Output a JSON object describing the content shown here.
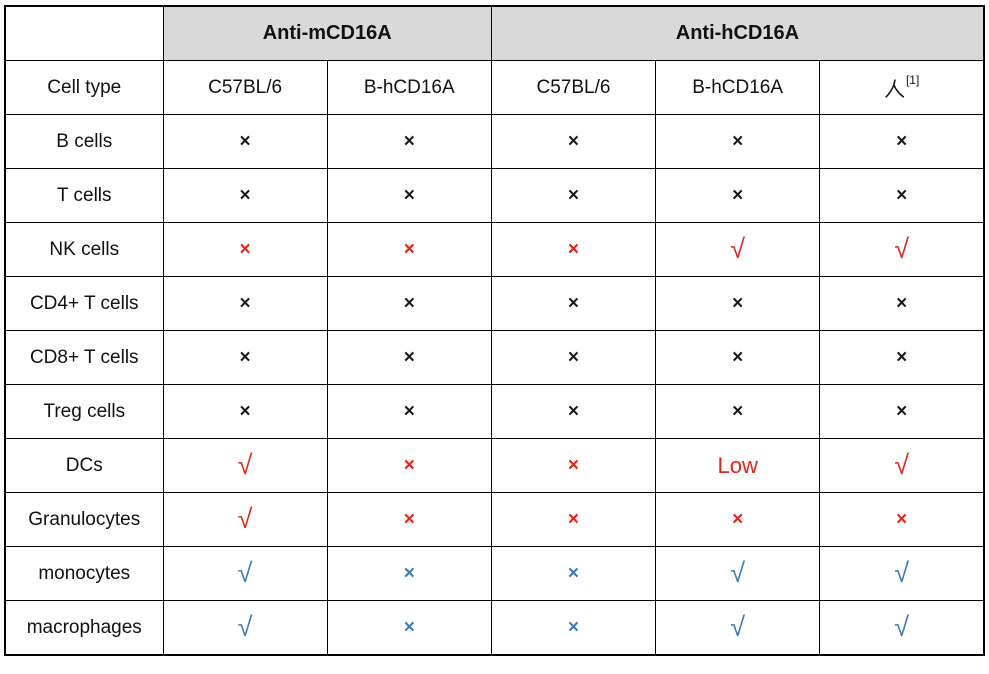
{
  "colors": {
    "black": "#1a1a1a",
    "red": "#e8231a",
    "blue": "#3e7bb6",
    "header_bg": "#d9d9d9",
    "border": "#000000"
  },
  "chart_data": {
    "type": "table",
    "title": "",
    "symbols": {
      "cross": "×",
      "check": "√"
    },
    "group_headers": [
      {
        "label": "Anti-mCD16A",
        "colspan": 2
      },
      {
        "label": "Anti-hCD16A",
        "colspan": 3
      }
    ],
    "column_headers": [
      {
        "label": "Cell type"
      },
      {
        "label": "C57BL/6"
      },
      {
        "label": "B-hCD16A"
      },
      {
        "label": "C57BL/6"
      },
      {
        "label": "B-hCD16A"
      },
      {
        "label": "人",
        "superscript": "[1]"
      }
    ],
    "rows": [
      {
        "cell_type": "B cells",
        "values": [
          {
            "symbol": "cross",
            "color": "black"
          },
          {
            "symbol": "cross",
            "color": "black"
          },
          {
            "symbol": "cross",
            "color": "black"
          },
          {
            "symbol": "cross",
            "color": "black"
          },
          {
            "symbol": "cross",
            "color": "black"
          }
        ]
      },
      {
        "cell_type": "T cells",
        "values": [
          {
            "symbol": "cross",
            "color": "black"
          },
          {
            "symbol": "cross",
            "color": "black"
          },
          {
            "symbol": "cross",
            "color": "black"
          },
          {
            "symbol": "cross",
            "color": "black"
          },
          {
            "symbol": "cross",
            "color": "black"
          }
        ]
      },
      {
        "cell_type": "NK cells",
        "values": [
          {
            "symbol": "cross",
            "color": "red"
          },
          {
            "symbol": "cross",
            "color": "red"
          },
          {
            "symbol": "cross",
            "color": "red"
          },
          {
            "symbol": "check",
            "color": "red"
          },
          {
            "symbol": "check",
            "color": "red"
          }
        ]
      },
      {
        "cell_type": "CD4+ T cells",
        "values": [
          {
            "symbol": "cross",
            "color": "black"
          },
          {
            "symbol": "cross",
            "color": "black"
          },
          {
            "symbol": "cross",
            "color": "black"
          },
          {
            "symbol": "cross",
            "color": "black"
          },
          {
            "symbol": "cross",
            "color": "black"
          }
        ]
      },
      {
        "cell_type": "CD8+ T cells",
        "values": [
          {
            "symbol": "cross",
            "color": "black"
          },
          {
            "symbol": "cross",
            "color": "black"
          },
          {
            "symbol": "cross",
            "color": "black"
          },
          {
            "symbol": "cross",
            "color": "black"
          },
          {
            "symbol": "cross",
            "color": "black"
          }
        ]
      },
      {
        "cell_type": "Treg cells",
        "values": [
          {
            "symbol": "cross",
            "color": "black"
          },
          {
            "symbol": "cross",
            "color": "black"
          },
          {
            "symbol": "cross",
            "color": "black"
          },
          {
            "symbol": "cross",
            "color": "black"
          },
          {
            "symbol": "cross",
            "color": "black"
          }
        ]
      },
      {
        "cell_type": "DCs",
        "values": [
          {
            "symbol": "check",
            "color": "red"
          },
          {
            "symbol": "cross",
            "color": "red"
          },
          {
            "symbol": "cross",
            "color": "red"
          },
          {
            "symbol": "text",
            "text": "Low",
            "color": "red"
          },
          {
            "symbol": "check",
            "color": "red"
          }
        ]
      },
      {
        "cell_type": "Granulocytes",
        "values": [
          {
            "symbol": "check",
            "color": "red"
          },
          {
            "symbol": "cross",
            "color": "red"
          },
          {
            "symbol": "cross",
            "color": "red"
          },
          {
            "symbol": "cross",
            "color": "red"
          },
          {
            "symbol": "cross",
            "color": "red"
          }
        ]
      },
      {
        "cell_type": "monocytes",
        "values": [
          {
            "symbol": "check",
            "color": "blue"
          },
          {
            "symbol": "cross",
            "color": "blue"
          },
          {
            "symbol": "cross",
            "color": "blue"
          },
          {
            "symbol": "check",
            "color": "blue"
          },
          {
            "symbol": "check",
            "color": "blue"
          }
        ]
      },
      {
        "cell_type": "macrophages",
        "values": [
          {
            "symbol": "check",
            "color": "blue"
          },
          {
            "symbol": "cross",
            "color": "blue"
          },
          {
            "symbol": "cross",
            "color": "blue"
          },
          {
            "symbol": "check",
            "color": "blue"
          },
          {
            "symbol": "check",
            "color": "blue"
          }
        ]
      }
    ]
  }
}
